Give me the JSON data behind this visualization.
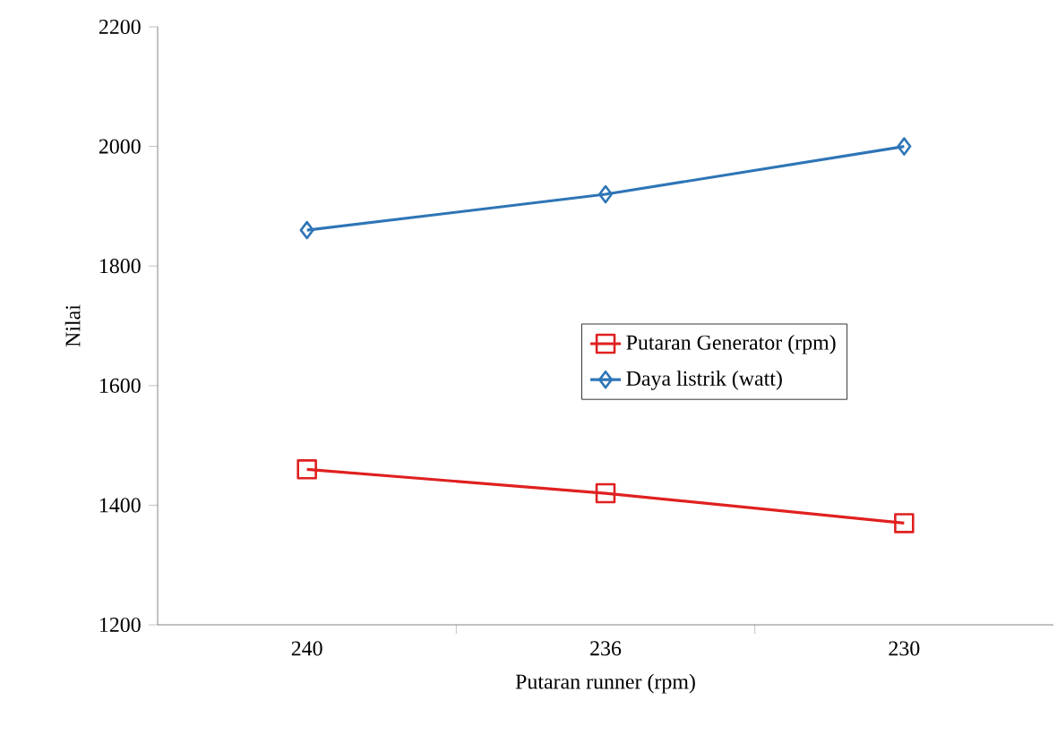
{
  "chart_data": {
    "type": "line",
    "xlabel": "Putaran runner (rpm)",
    "ylabel": "Nilai",
    "categories": [
      "240",
      "236",
      "230"
    ],
    "series": [
      {
        "name": "Putaran Generator (rpm)",
        "color": "#e02020",
        "marker": "square",
        "values": [
          1460,
          1420,
          1370
        ]
      },
      {
        "name": "Daya listrik (watt)",
        "color": "#2e75b6",
        "marker": "diamond",
        "values": [
          1860,
          1920,
          2000
        ]
      }
    ],
    "ylim": [
      1200,
      2200
    ],
    "yticks": [
      1200,
      1400,
      1600,
      1800,
      2000,
      2200
    ],
    "grid": false,
    "legend": "right",
    "line_style": "solid"
  }
}
